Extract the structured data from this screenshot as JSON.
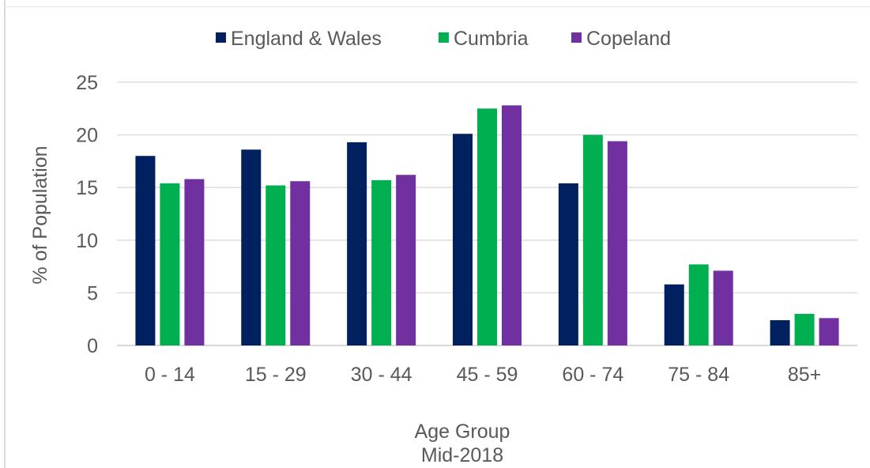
{
  "chart_data": {
    "type": "bar",
    "categories": [
      "0 - 14",
      "15 - 29",
      "30 - 44",
      "45 - 59",
      "60 - 74",
      "75 - 84",
      "85+"
    ],
    "series": [
      {
        "name": "England & Wales",
        "color": "#002060",
        "values": [
          18.0,
          18.6,
          19.3,
          20.1,
          15.4,
          5.8,
          2.4
        ]
      },
      {
        "name": "Cumbria",
        "color": "#00B050",
        "values": [
          15.4,
          15.2,
          15.7,
          22.5,
          20.0,
          7.7,
          3.0
        ]
      },
      {
        "name": "Copeland",
        "color": "#7030A0",
        "values": [
          15.8,
          15.6,
          16.2,
          22.8,
          19.4,
          7.1,
          2.6
        ]
      }
    ],
    "xlabel": "Age Group",
    "xlabel_sub": "Mid-2018",
    "ylabel": "% of Population",
    "ylim": [
      0,
      25
    ],
    "yticks": [
      0,
      5,
      10,
      15,
      20,
      25
    ],
    "grid": true,
    "legend_position": "top"
  }
}
